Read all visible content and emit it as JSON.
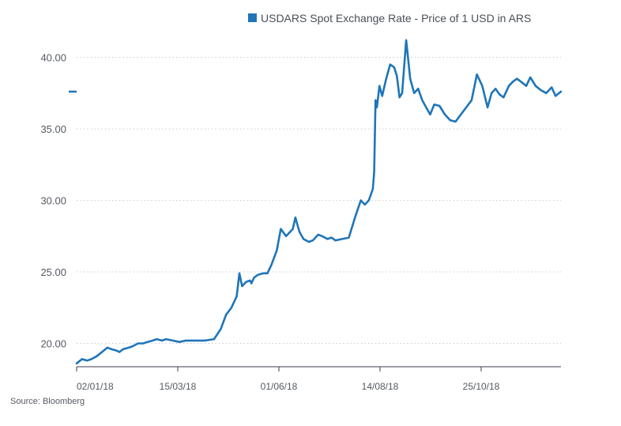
{
  "chart_data": {
    "type": "line",
    "legend": {
      "placement": "top",
      "swatch_color": "#1f75b8"
    },
    "source": "Source: Bloomberg",
    "grid": "horizontal-dotted",
    "line_color": "#1f75b8",
    "ylim": [
      18.3,
      41.2
    ],
    "y_ticks": [
      20,
      25,
      30,
      35,
      40
    ],
    "y_tick_labels": [
      "20.00",
      "25.00",
      "30.00",
      "35.00",
      "40.00"
    ],
    "x_ticks": [
      "02/01/18",
      "15/03/18",
      "01/06/18",
      "14/08/18",
      "25/10/18"
    ],
    "x_range": [
      "2018-01-02",
      "2018-12-31"
    ],
    "current_value_marker": 37.6,
    "series": [
      {
        "name": "USDARS Spot Exchange Rate - Price of 1 USD in ARS",
        "x": [
          "2018-01-02",
          "2018-01-06",
          "2018-01-10",
          "2018-01-13",
          "2018-01-17",
          "2018-01-21",
          "2018-01-25",
          "2018-01-28",
          "2018-02-01",
          "2018-02-03",
          "2018-02-06",
          "2018-02-10",
          "2018-02-13",
          "2018-02-17",
          "2018-02-21",
          "2018-02-24",
          "2018-02-28",
          "2018-03-03",
          "2018-03-07",
          "2018-03-10",
          "2018-03-15",
          "2018-03-20",
          "2018-03-25",
          "2018-04-01",
          "2018-04-08",
          "2018-04-15",
          "2018-04-20",
          "2018-04-24",
          "2018-04-28",
          "2018-05-02",
          "2018-05-04",
          "2018-05-06",
          "2018-05-09",
          "2018-05-12",
          "2018-05-13",
          "2018-05-15",
          "2018-05-18",
          "2018-05-22",
          "2018-05-25",
          "2018-05-28",
          "2018-06-01",
          "2018-06-04",
          "2018-06-08",
          "2018-06-13",
          "2018-06-15",
          "2018-06-18",
          "2018-06-21",
          "2018-06-25",
          "2018-06-28",
          "2018-07-02",
          "2018-07-05",
          "2018-07-09",
          "2018-07-12",
          "2018-07-15",
          "2018-07-20",
          "2018-07-25",
          "2018-07-30",
          "2018-08-03",
          "2018-08-06",
          "2018-08-09",
          "2018-08-12",
          "2018-08-13",
          "2018-08-14",
          "2018-08-15",
          "2018-08-17",
          "2018-08-19",
          "2018-08-22",
          "2018-08-25",
          "2018-08-28",
          "2018-08-30",
          "2018-09-01",
          "2018-09-03",
          "2018-09-06",
          "2018-09-09",
          "2018-09-12",
          "2018-09-15",
          "2018-09-18",
          "2018-09-21",
          "2018-09-24",
          "2018-09-27",
          "2018-10-01",
          "2018-10-05",
          "2018-10-09",
          "2018-10-13",
          "2018-10-17",
          "2018-10-21",
          "2018-10-25",
          "2018-10-29",
          "2018-11-02",
          "2018-11-06",
          "2018-11-09",
          "2018-11-12",
          "2018-11-15",
          "2018-11-18",
          "2018-11-22",
          "2018-11-25",
          "2018-11-28",
          "2018-12-01",
          "2018-12-05",
          "2018-12-08",
          "2018-12-12",
          "2018-12-16",
          "2018-12-20",
          "2018-12-24",
          "2018-12-27",
          "2018-12-31"
        ],
        "values": [
          18.6,
          18.9,
          18.8,
          18.9,
          19.1,
          19.4,
          19.7,
          19.6,
          19.5,
          19.4,
          19.6,
          19.7,
          19.8,
          20.0,
          20.0,
          20.1,
          20.2,
          20.3,
          20.2,
          20.3,
          20.2,
          20.1,
          20.2,
          20.2,
          20.2,
          20.3,
          21.0,
          22.0,
          22.5,
          23.3,
          24.9,
          24.0,
          24.3,
          24.4,
          24.2,
          24.6,
          24.8,
          24.9,
          24.9,
          25.5,
          26.5,
          28.0,
          27.5,
          28.0,
          28.8,
          27.8,
          27.3,
          27.1,
          27.2,
          27.6,
          27.5,
          27.3,
          27.4,
          27.2,
          27.3,
          27.4,
          28.9,
          30.0,
          29.7,
          30.0,
          30.8,
          32.0,
          37.0,
          36.5,
          38.0,
          37.3,
          38.5,
          39.5,
          39.3,
          38.7,
          37.2,
          37.5,
          41.2,
          38.5,
          37.5,
          37.8,
          37.0,
          36.5,
          36.0,
          36.7,
          36.6,
          36.0,
          35.6,
          35.5,
          36.0,
          36.5,
          37.0,
          38.8,
          38.0,
          36.5,
          37.5,
          37.8,
          37.4,
          37.2,
          38.0,
          38.3,
          38.5,
          38.3,
          38.0,
          38.6,
          38.0,
          37.7,
          37.5,
          37.9,
          37.3,
          37.6
        ]
      }
    ]
  }
}
